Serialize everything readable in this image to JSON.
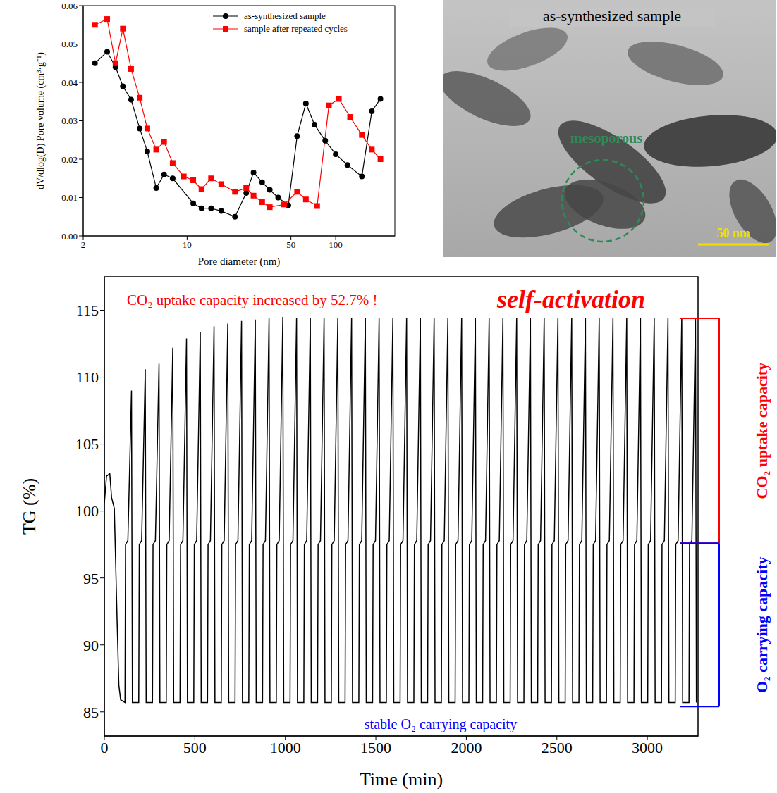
{
  "chart_data": [
    {
      "type": "line",
      "x_label": "Pore diameter (nm)",
      "y_label": "dV/dlog(D) Pore volume (cm³·g⁻¹)",
      "log": "x",
      "grid": false,
      "legend": "upper right",
      "xlim": [
        2,
        250
      ],
      "xticks": [
        2,
        10,
        50,
        100
      ],
      "ylim": [
        0,
        0.06
      ],
      "yticks": [
        {
          "value": 0,
          "label": "0.00"
        },
        0.01,
        0.02,
        0.03,
        0.04,
        0.05,
        0.06
      ],
      "series": [
        {
          "name": "as-synthesized sample",
          "color": "#000000",
          "marker": "circle",
          "x": [
            2.4,
            2.9,
            3.3,
            3.7,
            4.2,
            4.8,
            5.4,
            6.2,
            7.0,
            8.0,
            11,
            12.5,
            14.5,
            17,
            21,
            25,
            28,
            32,
            36,
            41,
            48,
            55,
            63,
            72,
            85,
            100,
            120,
            150,
            175,
            200
          ],
          "values": [
            0.045,
            0.048,
            0.044,
            0.039,
            0.0355,
            0.028,
            0.022,
            0.0125,
            0.016,
            0.015,
            0.0085,
            0.0072,
            0.0072,
            0.0065,
            0.005,
            0.0112,
            0.0165,
            0.014,
            0.012,
            0.01,
            0.008,
            0.026,
            0.0345,
            0.029,
            0.0248,
            0.0213,
            0.0185,
            0.0155,
            0.0325,
            0.0357
          ]
        },
        {
          "name": "sample after repeated cycles",
          "color": "#ff0000",
          "marker": "square",
          "x": [
            2.4,
            2.9,
            3.3,
            3.7,
            4.2,
            4.8,
            5.4,
            6.2,
            7.0,
            8.0,
            9.5,
            11,
            12.5,
            14.5,
            17,
            21,
            25,
            28,
            32,
            36,
            45,
            55,
            63,
            75,
            90,
            105,
            125,
            150,
            175,
            200
          ],
          "values": [
            0.055,
            0.0565,
            0.045,
            0.054,
            0.0435,
            0.036,
            0.028,
            0.0225,
            0.0245,
            0.019,
            0.0155,
            0.0145,
            0.0122,
            0.015,
            0.0135,
            0.0115,
            0.0125,
            0.0105,
            0.0088,
            0.0075,
            0.0082,
            0.0115,
            0.0095,
            0.0078,
            0.034,
            0.0357,
            0.031,
            0.0263,
            0.0225,
            0.02
          ]
        }
      ]
    },
    {
      "type": "image",
      "title": "as-synthesized sample",
      "annotations": [
        {
          "text": "mesoporous",
          "color": "#2e8b57"
        },
        {
          "text": "50 nm",
          "color": "#f0e000"
        }
      ]
    },
    {
      "type": "line",
      "x_label": "Time (min)",
      "y_label": "TG (%)",
      "grid": false,
      "color": "#000000",
      "xlim": [
        0,
        3280
      ],
      "xticks": [
        0,
        500,
        1000,
        1500,
        2000,
        2500,
        3000
      ],
      "ylim": [
        83.2,
        117.5
      ],
      "yticks": [
        85,
        90,
        95,
        100,
        105,
        110,
        115
      ],
      "x": [
        0,
        12,
        30,
        40,
        55,
        70,
        80,
        90,
        114,
        117,
        130,
        150,
        155,
        190,
        193,
        206,
        226,
        231,
        266,
        269,
        282,
        302,
        307,
        342,
        345,
        358,
        378,
        383,
        418,
        421,
        434,
        454,
        459,
        494,
        497,
        510,
        530,
        535,
        570,
        573,
        586,
        606,
        611,
        646,
        649,
        662,
        682,
        687,
        722,
        725,
        738,
        758,
        763,
        798,
        801,
        814,
        834,
        839,
        874,
        877,
        890,
        910,
        915,
        950,
        953,
        966,
        986,
        991,
        1026,
        1029,
        1042,
        1062,
        1067,
        1102,
        1105,
        1118,
        1138,
        1143,
        1178,
        1181,
        1194,
        1214,
        1219,
        1254,
        1257,
        1270,
        1290,
        1295,
        1330,
        1333,
        1346,
        1366,
        1371,
        1406,
        1409,
        1422,
        1442,
        1447,
        1482,
        1485,
        1498,
        1518,
        1523,
        1558,
        1561,
        1574,
        1594,
        1599,
        1634,
        1637,
        1650,
        1670,
        1675,
        1710,
        1713,
        1726,
        1746,
        1751,
        1786,
        1789,
        1802,
        1822,
        1827,
        1862,
        1865,
        1878,
        1898,
        1903,
        1938,
        1941,
        1954,
        1974,
        1979,
        2014,
        2017,
        2030,
        2050,
        2055,
        2090,
        2093,
        2106,
        2126,
        2131,
        2166,
        2169,
        2182,
        2202,
        2207,
        2242,
        2245,
        2258,
        2278,
        2283,
        2318,
        2321,
        2334,
        2354,
        2359,
        2394,
        2397,
        2410,
        2430,
        2435,
        2470,
        2473,
        2486,
        2506,
        2511,
        2546,
        2549,
        2562,
        2582,
        2587,
        2622,
        2625,
        2638,
        2658,
        2663,
        2698,
        2701,
        2714,
        2734,
        2739,
        2774,
        2777,
        2790,
        2810,
        2815,
        2850,
        2853,
        2866,
        2886,
        2891,
        2926,
        2929,
        2942,
        2962,
        2967,
        3002,
        3005,
        3018,
        3038,
        3043,
        3078,
        3081,
        3094,
        3114,
        3119,
        3154,
        3157,
        3170,
        3190,
        3195,
        3230,
        3233,
        3246,
        3266,
        3271
      ],
      "values": [
        100.6,
        102.6,
        102.8,
        101.0,
        100.2,
        92.0,
        87.0,
        85.9,
        85.7,
        97.5,
        97.8,
        109.0,
        85.7,
        85.7,
        97.5,
        97.8,
        110.6,
        85.7,
        85.7,
        97.5,
        97.8,
        111.0,
        85.7,
        85.7,
        97.5,
        97.8,
        112.2,
        85.7,
        85.7,
        97.5,
        97.8,
        112.9,
        85.7,
        85.7,
        97.5,
        97.8,
        113.4,
        85.7,
        85.7,
        97.5,
        97.8,
        113.8,
        85.7,
        85.7,
        97.5,
        97.8,
        114.0,
        85.7,
        85.7,
        97.5,
        97.8,
        114.2,
        85.7,
        85.7,
        97.5,
        97.8,
        114.3,
        85.7,
        85.7,
        97.5,
        97.8,
        114.4,
        85.7,
        85.7,
        97.5,
        97.8,
        114.5,
        85.7,
        85.7,
        97.5,
        97.8,
        114.4,
        85.7,
        85.7,
        97.5,
        97.8,
        114.4,
        85.7,
        85.7,
        97.5,
        97.8,
        114.4,
        85.7,
        85.7,
        97.5,
        97.8,
        114.4,
        85.7,
        85.7,
        97.5,
        97.8,
        114.4,
        85.7,
        85.7,
        97.5,
        97.8,
        114.4,
        85.7,
        85.7,
        97.5,
        97.8,
        114.4,
        85.7,
        85.7,
        97.5,
        97.8,
        114.4,
        85.7,
        85.7,
        97.5,
        97.8,
        114.4,
        85.7,
        85.7,
        97.5,
        97.8,
        114.4,
        85.7,
        85.7,
        97.5,
        97.8,
        114.4,
        85.7,
        85.7,
        97.5,
        97.8,
        114.4,
        85.7,
        85.7,
        97.5,
        97.8,
        114.4,
        85.7,
        85.7,
        97.5,
        97.8,
        114.4,
        85.7,
        85.7,
        97.5,
        97.8,
        114.4,
        85.7,
        85.7,
        97.5,
        97.8,
        114.4,
        85.7,
        85.7,
        97.5,
        97.8,
        114.4,
        85.7,
        85.7,
        97.5,
        97.8,
        114.4,
        85.7,
        85.7,
        97.5,
        97.8,
        114.4,
        85.7,
        85.7,
        97.5,
        97.8,
        114.4,
        85.7,
        85.7,
        97.5,
        97.8,
        114.4,
        85.7,
        85.7,
        97.5,
        97.8,
        114.4,
        85.7,
        85.7,
        97.5,
        97.8,
        114.4,
        85.7,
        85.7,
        97.5,
        97.8,
        114.4,
        85.7,
        85.7,
        97.5,
        97.8,
        114.4,
        85.7,
        85.7,
        97.5,
        97.8,
        114.4,
        85.7,
        85.7,
        97.5,
        97.8,
        114.4,
        85.7,
        85.7,
        97.5,
        97.8,
        114.4,
        85.7,
        85.7,
        97.5,
        97.8,
        114.4,
        85.7,
        85.7,
        97.5,
        97.8,
        114.4,
        85.7
      ],
      "annotations": [
        {
          "text": "CO₂ uptake capacity increased by 52.7% !",
          "color": "#ff0000"
        },
        {
          "text": "self-activation",
          "color": "#ff0000"
        },
        {
          "text": "stable O₂ carrying capacity",
          "color": "#0000ff"
        }
      ],
      "brackets": [
        {
          "text": "CO₂ uptake capacity",
          "color": "#ff0000",
          "range": [
            97.6,
            114.4
          ]
        },
        {
          "text": "O₂ carrying capacity",
          "color": "#0000ff",
          "range": [
            85.4,
            97.6
          ]
        }
      ]
    }
  ]
}
